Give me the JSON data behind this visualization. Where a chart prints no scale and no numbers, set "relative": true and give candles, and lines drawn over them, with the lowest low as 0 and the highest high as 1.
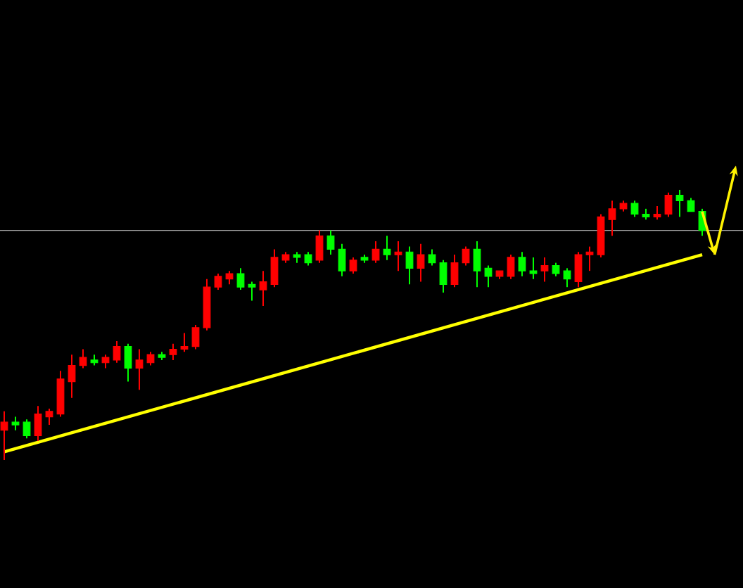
{
  "chart_data": {
    "type": "candlestick",
    "relative": true,
    "categories": [
      null,
      null,
      null,
      null,
      null,
      null,
      null,
      null,
      null,
      null,
      null,
      null,
      null,
      null,
      null,
      null,
      null,
      null,
      null,
      null,
      null,
      null,
      null,
      null,
      null,
      null,
      null,
      null,
      null,
      null,
      null,
      null,
      null,
      null,
      null,
      null,
      null,
      null,
      null,
      null,
      null,
      null,
      null,
      null,
      null,
      null,
      null,
      null,
      null,
      null,
      null,
      null,
      null,
      null,
      null,
      null,
      null,
      null,
      null,
      null,
      null,
      null,
      null
    ],
    "ohlc": [
      [
        0.11,
        0.18,
        0,
        0.14
      ],
      [
        0.14,
        0.16,
        0.11,
        0.13
      ],
      [
        0.14,
        0.15,
        0.08,
        0.09
      ],
      [
        0.09,
        0.2,
        0.07,
        0.17
      ],
      [
        0.16,
        0.19,
        0.13,
        0.18
      ],
      [
        0.17,
        0.33,
        0.16,
        0.3
      ],
      [
        0.29,
        0.39,
        0.23,
        0.35
      ],
      [
        0.35,
        0.41,
        0.34,
        0.38
      ],
      [
        0.37,
        0.39,
        0.35,
        0.36
      ],
      [
        0.36,
        0.39,
        0.34,
        0.38
      ],
      [
        0.37,
        0.44,
        0.36,
        0.42
      ],
      [
        0.42,
        0.43,
        0.29,
        0.34
      ],
      [
        0.34,
        0.41,
        0.26,
        0.37
      ],
      [
        0.36,
        0.4,
        0.35,
        0.39
      ],
      [
        0.39,
        0.4,
        0.37,
        0.38
      ],
      [
        0.39,
        0.43,
        0.37,
        0.41
      ],
      [
        0.41,
        0.47,
        0.4,
        0.42
      ],
      [
        0.42,
        0.5,
        0.41,
        0.49
      ],
      [
        0.49,
        0.67,
        0.48,
        0.64
      ],
      [
        0.64,
        0.69,
        0.63,
        0.68
      ],
      [
        0.67,
        0.7,
        0.65,
        0.69
      ],
      [
        0.69,
        0.71,
        0.63,
        0.64
      ],
      [
        0.65,
        0.66,
        0.59,
        0.64
      ],
      [
        0.63,
        0.7,
        0.57,
        0.66
      ],
      [
        0.65,
        0.78,
        0.64,
        0.75
      ],
      [
        0.74,
        0.77,
        0.73,
        0.76
      ],
      [
        0.76,
        0.77,
        0.73,
        0.75
      ],
      [
        0.76,
        0.77,
        0.72,
        0.73
      ],
      [
        0.74,
        0.85,
        0.73,
        0.83
      ],
      [
        0.83,
        0.85,
        0.76,
        0.78
      ],
      [
        0.78,
        0.8,
        0.68,
        0.7
      ],
      [
        0.7,
        0.75,
        0.69,
        0.74
      ],
      [
        0.75,
        0.76,
        0.73,
        0.74
      ],
      [
        0.74,
        0.81,
        0.73,
        0.78
      ],
      [
        0.78,
        0.83,
        0.74,
        0.76
      ],
      [
        0.76,
        0.81,
        0.7,
        0.77
      ],
      [
        0.77,
        0.79,
        0.65,
        0.71
      ],
      [
        0.71,
        0.8,
        0.66,
        0.76
      ],
      [
        0.76,
        0.78,
        0.72,
        0.73
      ],
      [
        0.73,
        0.74,
        0.62,
        0.65
      ],
      [
        0.65,
        0.76,
        0.64,
        0.73
      ],
      [
        0.73,
        0.79,
        0.72,
        0.78
      ],
      [
        0.78,
        0.81,
        0.64,
        0.7
      ],
      [
        0.71,
        0.72,
        0.64,
        0.68
      ],
      [
        0.68,
        0.7,
        0.67,
        0.7
      ],
      [
        0.68,
        0.76,
        0.67,
        0.75
      ],
      [
        0.75,
        0.77,
        0.68,
        0.7
      ],
      [
        0.7,
        0.75,
        0.67,
        0.69
      ],
      [
        0.7,
        0.75,
        0.66,
        0.72
      ],
      [
        0.72,
        0.73,
        0.68,
        0.69
      ],
      [
        0.7,
        0.71,
        0.64,
        0.67
      ],
      [
        0.66,
        0.77,
        0.64,
        0.76
      ],
      [
        0.76,
        0.79,
        0.7,
        0.77
      ],
      [
        0.76,
        0.91,
        0.75,
        0.9
      ],
      [
        0.89,
        0.96,
        0.83,
        0.93
      ],
      [
        0.93,
        0.96,
        0.92,
        0.95
      ],
      [
        0.95,
        0.96,
        0.9,
        0.91
      ],
      [
        0.91,
        0.93,
        0.89,
        0.9
      ],
      [
        0.9,
        0.94,
        0.89,
        0.91
      ],
      [
        0.91,
        0.99,
        0.9,
        0.98
      ],
      [
        0.98,
        1.0,
        0.9,
        0.96
      ],
      [
        0.96,
        0.97,
        0.92,
        0.92
      ],
      [
        0.92,
        0.93,
        0.83,
        0.85
      ]
    ],
    "colors": [
      "#ff0000",
      "#00ff00",
      "#00ff00",
      "#ff0000",
      "#ff0000",
      "#ff0000",
      "#ff0000",
      "#ff0000",
      "#00ff00",
      "#ff0000",
      "#ff0000",
      "#00ff00",
      "#ff0000",
      "#ff0000",
      "#00ff00",
      "#ff0000",
      "#ff0000",
      "#ff0000",
      "#ff0000",
      "#ff0000",
      "#ff0000",
      "#00ff00",
      "#00ff00",
      "#ff0000",
      "#ff0000",
      "#ff0000",
      "#00ff00",
      "#00ff00",
      "#ff0000",
      "#00ff00",
      "#00ff00",
      "#ff0000",
      "#00ff00",
      "#ff0000",
      "#00ff00",
      "#ff0000",
      "#00ff00",
      "#ff0000",
      "#00ff00",
      "#00ff00",
      "#ff0000",
      "#ff0000",
      "#00ff00",
      "#00ff00",
      "#ff0000",
      "#ff0000",
      "#00ff00",
      "#00ff00",
      "#ff0000",
      "#00ff00",
      "#00ff00",
      "#ff0000",
      "#ff0000",
      "#ff0000",
      "#ff0000",
      "#ff0000",
      "#00ff00",
      "#00ff00",
      "#ff0000",
      "#ff0000",
      "#00ff00",
      "#00ff00",
      "#00ff00"
    ],
    "ref_lines": [
      {
        "axis": "y",
        "value": 0.85,
        "color": "#a0a0a0"
      }
    ],
    "series": [
      {
        "type": "line",
        "color": "#ffff00",
        "values": [
          0.03,
          null,
          null,
          null,
          null,
          null,
          null,
          null,
          null,
          null,
          null,
          null,
          null,
          null,
          null,
          null,
          null,
          null,
          null,
          null,
          null,
          null,
          null,
          null,
          null,
          null,
          null,
          null,
          null,
          null,
          null,
          null,
          null,
          null,
          null,
          null,
          null,
          null,
          null,
          null,
          null,
          null,
          null,
          null,
          null,
          null,
          null,
          null,
          null,
          null,
          null,
          null,
          null,
          null,
          null,
          null,
          null,
          null,
          null,
          null,
          null,
          null,
          0.76
        ]
      }
    ]
  }
}
